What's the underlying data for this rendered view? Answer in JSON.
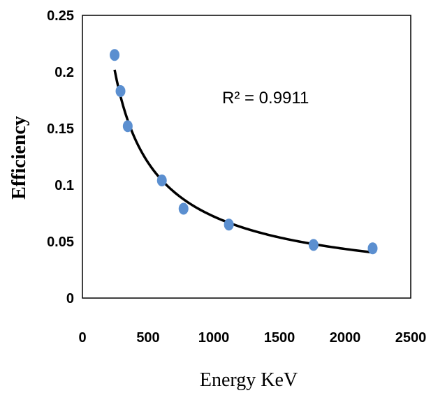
{
  "chart_data": {
    "type": "scatter",
    "title": "",
    "xlabel": "Energy KeV",
    "ylabel": "Efficiency",
    "xlim": [
      0,
      2500
    ],
    "ylim": [
      0,
      0.25
    ],
    "xticks": [
      "0",
      "500",
      "1000",
      "1500",
      "2000",
      "2500"
    ],
    "yticks": [
      "0",
      "0.05",
      "0.1",
      "0.15",
      "0.2",
      "0.25"
    ],
    "grid": false,
    "legend": "none",
    "series": [
      {
        "marker_color": "#5b8fd0",
        "x": [
          245,
          290,
          345,
          605,
          770,
          1115,
          1760,
          2210
        ],
        "y": [
          0.215,
          0.183,
          0.152,
          0.104,
          0.079,
          0.065,
          0.047,
          0.044
        ]
      }
    ],
    "trendline": {
      "type": "power",
      "color": "#000000",
      "x_range": [
        245,
        2210
      ],
      "annotation": "R² = 0.9911"
    }
  }
}
